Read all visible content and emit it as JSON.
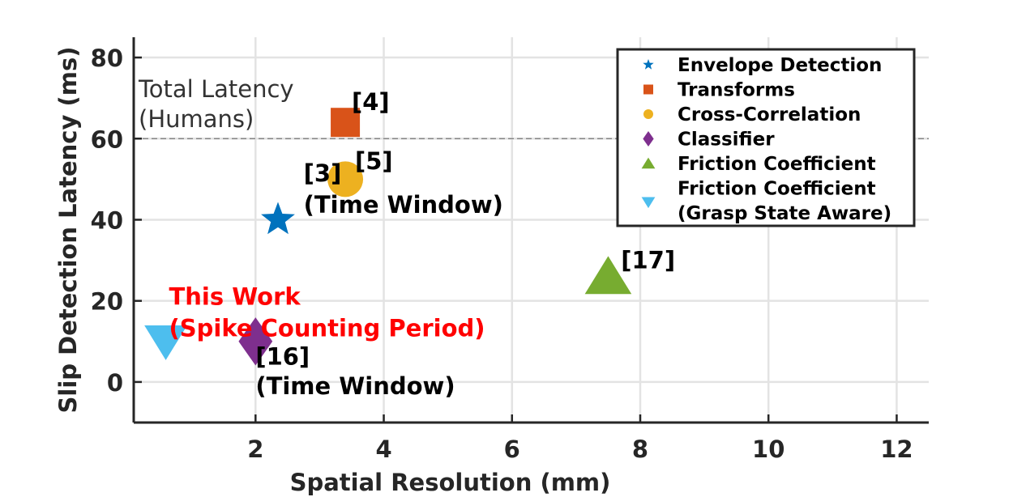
{
  "chart_data": {
    "type": "scatter",
    "xlabel": "Spatial Resolution (mm)",
    "ylabel": "Slip Detection Latency (ms)",
    "xlim": [
      0.1,
      12.5
    ],
    "ylim": [
      -10,
      85
    ],
    "xticks": [
      2,
      4,
      6,
      8,
      10,
      12
    ],
    "yticks": [
      0,
      20,
      40,
      60,
      80
    ],
    "grid": true,
    "legend_position": "top-right",
    "reference_line": {
      "y": 60,
      "label_lines": [
        "Total Latency",
        "(Humans)"
      ]
    },
    "series": [
      {
        "name": "Envelope Detection",
        "marker": "star",
        "color": "#0072BD",
        "points": [
          {
            "x": 2.35,
            "y": 40
          }
        ]
      },
      {
        "name": "Transforms",
        "marker": "square",
        "color": "#D95319",
        "points": [
          {
            "x": 3.4,
            "y": 64
          }
        ]
      },
      {
        "name": "Cross-Correlation",
        "marker": "circle",
        "color": "#EDB120",
        "points": [
          {
            "x": 3.4,
            "y": 50
          }
        ]
      },
      {
        "name": "Classifier",
        "marker": "diamond",
        "color": "#7E2F8E",
        "points": [
          {
            "x": 2.0,
            "y": 10
          }
        ]
      },
      {
        "name": "Friction Coefficient",
        "marker": "triangle-up",
        "color": "#77AC30",
        "points": [
          {
            "x": 7.5,
            "y": 26
          }
        ]
      },
      {
        "name_lines": [
          "Friction Coefficient",
          "(Grasp State Aware)"
        ],
        "marker": "triangle-down",
        "color": "#4DBEEE",
        "points": [
          {
            "x": 0.6,
            "y": 10
          }
        ]
      }
    ],
    "annotations": [
      {
        "lines": [
          "[4]"
        ],
        "x": 3.5,
        "y": 67,
        "color": "#000000"
      },
      {
        "lines": [
          "[5]"
        ],
        "x": 3.55,
        "y": 52.5,
        "color": "#000000"
      },
      {
        "lines": [
          "[3]",
          "(Time Window)"
        ],
        "x": 2.75,
        "y": 49.5,
        "color": "#000000"
      },
      {
        "lines": [
          "[17]"
        ],
        "x": 7.7,
        "y": 28,
        "color": "#000000"
      },
      {
        "lines": [
          "This Work",
          "(Spike Counting Period)"
        ],
        "x": 0.65,
        "y": 19,
        "color": "#FF0000"
      },
      {
        "lines": [
          "[16]"
        ],
        "x": 2.0,
        "y": 4.3,
        "color": "#000000"
      },
      {
        "lines": [
          "(Time Window)"
        ],
        "x": 2.0,
        "y": -3,
        "color": "#000000"
      }
    ]
  }
}
